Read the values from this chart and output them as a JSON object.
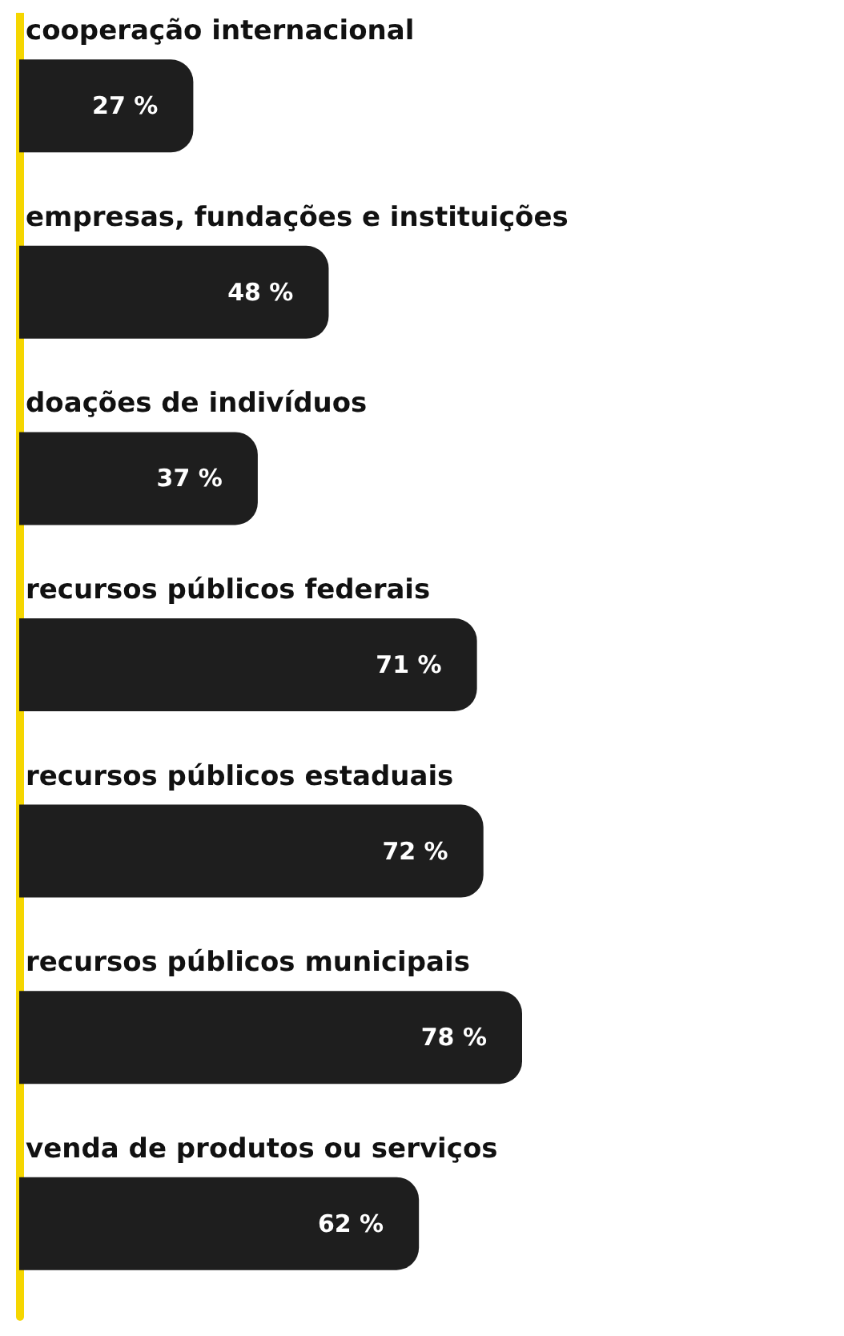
{
  "chart_data": {
    "type": "bar",
    "orientation": "horizontal",
    "categories": [
      "cooperação internacional",
      "empresas, fundações e instituições",
      "doações de indivíduos",
      "recursos públicos federais",
      "recursos públicos estaduais",
      "recursos públicos municipais",
      "venda de produtos ou serviços"
    ],
    "series": [
      {
        "color": "#1e1e1e",
        "values": [
          27,
          48,
          37,
          71,
          72,
          78,
          62
        ],
        "value_labels": [
          "27 %",
          "48 %",
          "37 %",
          "71 %",
          "72 %",
          "78 %",
          "62 %"
        ]
      }
    ],
    "tick_labels": "y"
  }
}
